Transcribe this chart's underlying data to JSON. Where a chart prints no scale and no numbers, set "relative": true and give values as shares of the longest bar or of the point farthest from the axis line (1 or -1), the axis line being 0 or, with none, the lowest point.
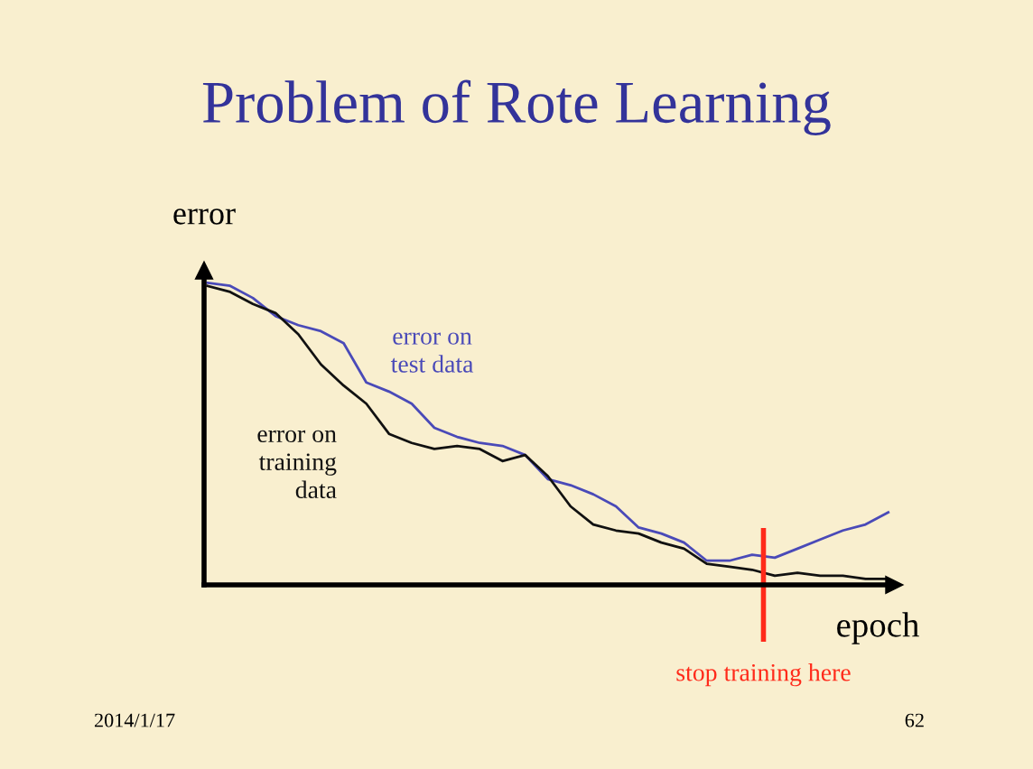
{
  "chart_data": {
    "type": "line",
    "title": "Problem of Rote Learning",
    "xlabel": "epoch",
    "ylabel": "error",
    "relative": true,
    "categories": [
      null,
      null,
      null,
      null,
      null,
      null,
      null,
      null,
      null,
      null,
      null,
      null,
      null,
      null,
      null,
      null,
      null,
      null,
      null,
      null,
      null,
      null,
      null,
      null,
      null,
      null,
      null,
      null,
      null,
      null,
      null
    ],
    "series": [
      {
        "name": "error on\ntest data",
        "color": "#4a4ab8",
        "values": [
          1.0,
          0.99,
          0.95,
          0.89,
          0.86,
          0.84,
          0.8,
          0.67,
          0.64,
          0.6,
          0.52,
          0.49,
          0.47,
          0.46,
          0.43,
          0.35,
          0.33,
          0.3,
          0.26,
          0.19,
          0.17,
          0.14,
          0.08,
          0.08,
          0.1,
          0.09,
          0.12,
          0.15,
          0.18,
          0.2,
          0.24
        ]
      },
      {
        "name": "error on\ntraining\ndata",
        "color": "#111111",
        "values": [
          0.99,
          0.97,
          0.93,
          0.9,
          0.83,
          0.73,
          0.66,
          0.6,
          0.5,
          0.47,
          0.45,
          0.46,
          0.45,
          0.41,
          0.43,
          0.36,
          0.26,
          0.2,
          0.18,
          0.17,
          0.14,
          0.12,
          0.07,
          0.06,
          0.05,
          0.03,
          0.04,
          0.03,
          0.03,
          0.02,
          0.02
        ]
      }
    ],
    "legend": false,
    "grid": false,
    "annotations": [
      "stop training here",
      "2014/1/17",
      "62"
    ]
  }
}
